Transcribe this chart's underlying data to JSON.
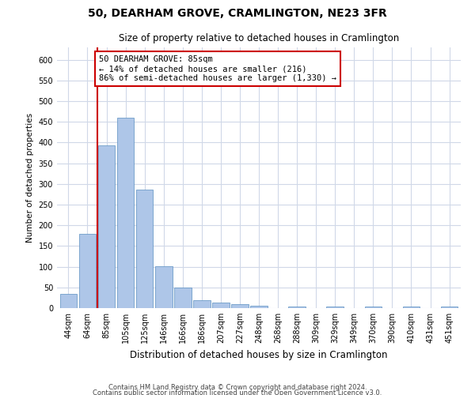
{
  "title": "50, DEARHAM GROVE, CRAMLINGTON, NE23 3FR",
  "subtitle": "Size of property relative to detached houses in Cramlington",
  "xlabel": "Distribution of detached houses by size in Cramlington",
  "ylabel": "Number of detached properties",
  "categories": [
    "44sqm",
    "64sqm",
    "85sqm",
    "105sqm",
    "125sqm",
    "146sqm",
    "166sqm",
    "186sqm",
    "207sqm",
    "227sqm",
    "248sqm",
    "268sqm",
    "288sqm",
    "309sqm",
    "329sqm",
    "349sqm",
    "370sqm",
    "390sqm",
    "410sqm",
    "431sqm",
    "451sqm"
  ],
  "values": [
    35,
    180,
    393,
    460,
    287,
    102,
    49,
    19,
    14,
    9,
    5,
    0,
    4,
    0,
    4,
    0,
    4,
    0,
    4,
    0,
    4
  ],
  "bar_color": "#aec6e8",
  "bar_edge_color": "#5a8fc0",
  "vline_color": "#cc0000",
  "vline_index": 2,
  "annotation_text": "50 DEARHAM GROVE: 85sqm\n← 14% of detached houses are smaller (216)\n86% of semi-detached houses are larger (1,330) →",
  "annotation_box_color": "#ffffff",
  "annotation_box_edge_color": "#cc0000",
  "ylim": [
    0,
    630
  ],
  "yticks": [
    0,
    50,
    100,
    150,
    200,
    250,
    300,
    350,
    400,
    450,
    500,
    550,
    600
  ],
  "footer_line1": "Contains HM Land Registry data © Crown copyright and database right 2024.",
  "footer_line2": "Contains public sector information licensed under the Open Government Licence v3.0.",
  "fig_width": 6.0,
  "fig_height": 5.0,
  "background_color": "#ffffff",
  "grid_color": "#d0d8e8",
  "title_fontsize": 10,
  "subtitle_fontsize": 8.5,
  "xlabel_fontsize": 8.5,
  "ylabel_fontsize": 7.5,
  "tick_fontsize": 7,
  "annotation_fontsize": 7.5,
  "footer_fontsize": 6
}
